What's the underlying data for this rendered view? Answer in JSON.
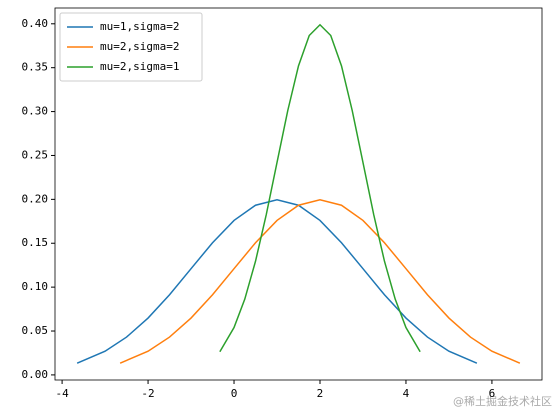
{
  "chart_data": {
    "type": "line",
    "xlim": [
      -4.165,
      7.165
    ],
    "ylim": [
      -0.0058,
      0.418
    ],
    "xticks": [
      -4,
      -2,
      0,
      2,
      4,
      6
    ],
    "yticks": [
      {
        "value": 0,
        "label": "0.00"
      },
      {
        "value": 0.05,
        "label": "0.05"
      },
      {
        "value": 0.1,
        "label": "0.10"
      },
      {
        "value": 0.15,
        "label": "0.15"
      },
      {
        "value": 0.2,
        "label": "0.20"
      },
      {
        "value": 0.25,
        "label": "0.25"
      },
      {
        "value": 0.3,
        "label": "0.30"
      },
      {
        "value": 0.35,
        "label": "0.35"
      },
      {
        "value": 0.4,
        "label": "0.40"
      }
    ],
    "legend": "upper left",
    "series": [
      {
        "name": "mu=1,sigma=2",
        "color": "#1f77b4",
        "x": [
          -3.65,
          -3,
          -2.5,
          -2,
          -1.5,
          -1,
          -0.5,
          0,
          0.5,
          1,
          1.5,
          2,
          2.5,
          3,
          3.5,
          4,
          4.5,
          5,
          5.65
        ],
        "values": [
          0.0134,
          0.027,
          0.0431,
          0.0648,
          0.0913,
          0.121,
          0.1506,
          0.176,
          0.1933,
          0.1995,
          0.1933,
          0.176,
          0.1506,
          0.121,
          0.0913,
          0.0648,
          0.0431,
          0.027,
          0.0134
        ]
      },
      {
        "name": "mu=2,sigma=2",
        "color": "#ff7f0e",
        "x": [
          -2.65,
          -2,
          -1.5,
          -1,
          -0.5,
          0,
          0.5,
          1,
          1.5,
          2,
          2.5,
          3,
          3.5,
          4,
          4.5,
          5,
          5.5,
          6,
          6.65
        ],
        "values": [
          0.0134,
          0.027,
          0.0431,
          0.0648,
          0.0913,
          0.121,
          0.1506,
          0.176,
          0.1933,
          0.1995,
          0.1933,
          0.176,
          0.1506,
          0.121,
          0.0913,
          0.0648,
          0.0431,
          0.027,
          0.0134
        ]
      },
      {
        "name": "mu=2,sigma=1",
        "color": "#2ca02c",
        "x": [
          -0.33,
          0,
          0.25,
          0.5,
          0.75,
          1,
          1.25,
          1.5,
          1.75,
          2,
          2.25,
          2.5,
          2.75,
          3,
          3.25,
          3.5,
          3.75,
          4,
          4.33
        ],
        "values": [
          0.0264,
          0.054,
          0.0863,
          0.1295,
          0.1826,
          0.242,
          0.3011,
          0.3521,
          0.3867,
          0.3989,
          0.3867,
          0.3521,
          0.3011,
          0.242,
          0.1826,
          0.1295,
          0.0863,
          0.054,
          0.0264
        ]
      }
    ],
    "watermark": "@稀土掘金技术社区"
  }
}
